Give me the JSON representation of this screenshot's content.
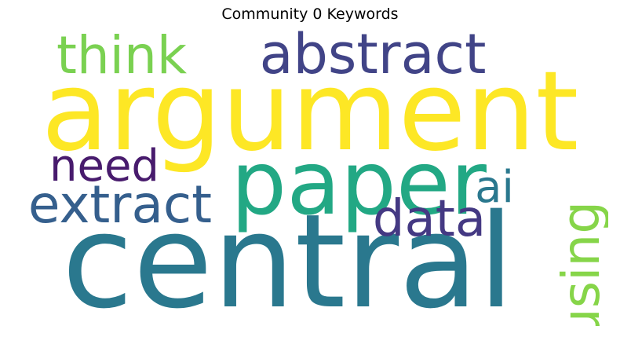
{
  "title": "Community 0 Keywords",
  "words": [
    {
      "text": "argument",
      "color": "#fde725"
    },
    {
      "text": "central",
      "color": "#2a788e"
    },
    {
      "text": "paper",
      "color": "#22a884"
    },
    {
      "text": "abstract",
      "color": "#414487"
    },
    {
      "text": "think",
      "color": "#7ad151"
    },
    {
      "text": "extract",
      "color": "#355f8d"
    },
    {
      "text": "data",
      "color": "#443983"
    },
    {
      "text": "need",
      "color": "#481b6d"
    },
    {
      "text": "ai",
      "color": "#2a788e"
    },
    {
      "text": "using",
      "color": "#86d549"
    }
  ]
}
